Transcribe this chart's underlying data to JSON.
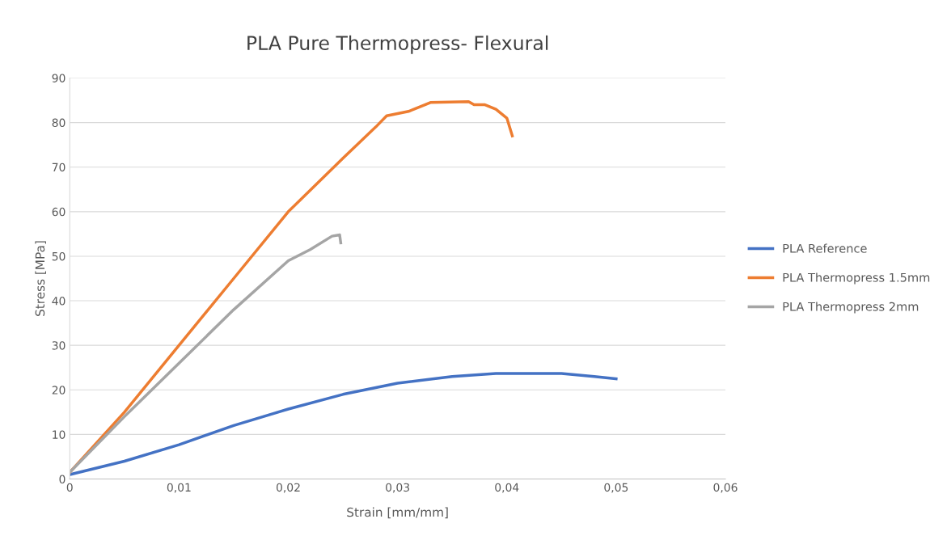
{
  "chart_data": {
    "type": "line",
    "title": "PLA Pure Thermopress- Flexural",
    "xlabel": "Strain [mm/mm]",
    "ylabel": "Stress [MPa]",
    "xlim": [
      0,
      0.06
    ],
    "xticks": [
      0,
      {
        "value": 0.01,
        "label": "0,01"
      },
      {
        "value": 0.02,
        "label": "0,02"
      },
      {
        "value": 0.03,
        "label": "0,03"
      },
      {
        "value": 0.04,
        "label": "0,04"
      },
      {
        "value": 0.05,
        "label": "0,05"
      },
      {
        "value": 0.06,
        "label": "0,06"
      }
    ],
    "ylim": [
      0,
      90
    ],
    "yticks": [
      0,
      10,
      20,
      30,
      40,
      50,
      60,
      70,
      80,
      90
    ],
    "grid": "y",
    "legend": "right",
    "marker": "none",
    "line_style": "solid",
    "series": [
      {
        "name": "PLA Reference",
        "color": "#4472c4",
        "x": [
          0,
          0.005,
          0.01,
          0.015,
          0.02,
          0.025,
          0.03,
          0.035,
          0.039,
          0.045,
          0.048,
          0.05
        ],
        "values": [
          1,
          4,
          7.7,
          12,
          15.7,
          19,
          21.5,
          23,
          23.7,
          23.7,
          23,
          22.5
        ]
      },
      {
        "name": "PLA Thermopress 1.5mm",
        "color": "#ed7d31",
        "x": [
          0,
          0.005,
          0.01,
          0.015,
          0.02,
          0.025,
          0.028,
          0.029,
          0.03,
          0.031,
          0.032,
          0.033,
          0.0365,
          0.037,
          0.038,
          0.039,
          0.04,
          0.0405
        ],
        "values": [
          1.5,
          15,
          30,
          45,
          60,
          72,
          79,
          81.5,
          82,
          82.5,
          83.5,
          84.5,
          84.7,
          84,
          84,
          83,
          81,
          77
        ]
      },
      {
        "name": "PLA Thermopress 2mm",
        "color": "#a5a5a5",
        "x": [
          0,
          0.005,
          0.01,
          0.015,
          0.02,
          0.022,
          0.024,
          0.0247,
          0.0248
        ],
        "values": [
          1.5,
          14,
          26,
          38,
          49,
          51.5,
          54.5,
          54.8,
          53
        ]
      }
    ]
  }
}
